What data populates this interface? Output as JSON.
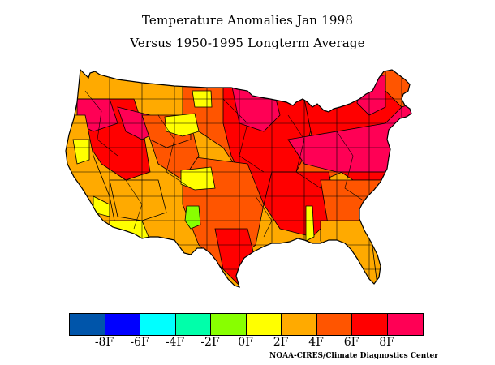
{
  "title": {
    "line1": "Temperature Anomalies Jan 1998",
    "line2": "Versus 1950-1995 Longterm Average"
  },
  "legend": {
    "colors": [
      "#0055aa",
      "#0000ff",
      "#00ffff",
      "#00ffaa",
      "#88ff00",
      "#ffff00",
      "#ffaa00",
      "#ff5500",
      "#ff0000",
      "#ff0055"
    ],
    "ticks": [
      "-8F",
      "-6F",
      "-4F",
      "-2F",
      "0F",
      "2F",
      "4F",
      "6F",
      "8F"
    ]
  },
  "credit": "NOAA-CIRES/Climate Diagnostics Center"
}
